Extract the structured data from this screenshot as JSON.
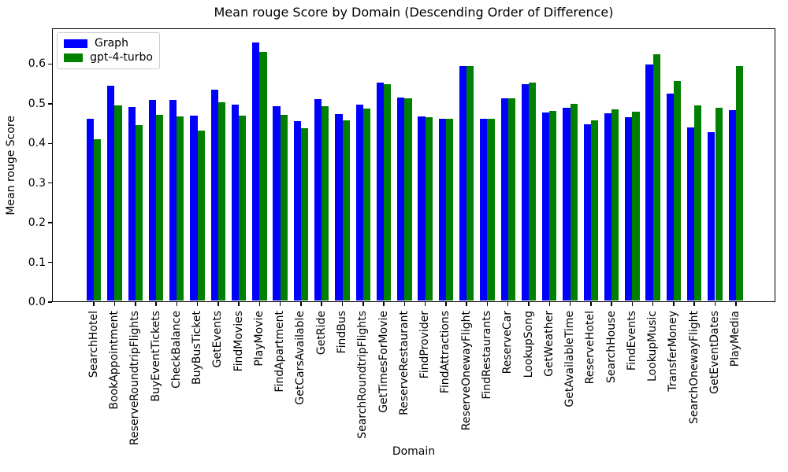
{
  "chart_data": {
    "type": "bar",
    "title": "Mean rouge Score by Domain (Descending Order of Difference)",
    "xlabel": "Domain",
    "ylabel": "Mean rouge Score",
    "ylim": [
      0,
      0.69
    ],
    "yticks": [
      0.0,
      0.1,
      0.2,
      0.3,
      0.4,
      0.5,
      0.6
    ],
    "grid": false,
    "legend_position": "upper-left",
    "categories": [
      "SearchHotel",
      "BookAppointment",
      "ReserveRoundtripFlights",
      "BuyEventTickets",
      "CheckBalance",
      "BuyBusTicket",
      "GetEvents",
      "FindMovies",
      "PlayMovie",
      "FindApartment",
      "GetCarsAvailable",
      "GetRide",
      "FindBus",
      "SearchRoundtripFlights",
      "GetTimesForMovie",
      "ReserveRestaurant",
      "FindProvider",
      "FindAttractions",
      "ReserveOnewayFlight",
      "FindRestaurants",
      "ReserveCar",
      "LookupSong",
      "GetWeather",
      "GetAvailableTime",
      "ReserveHotel",
      "SearchHouse",
      "FindEvents",
      "LookupMusic",
      "TransferMoney",
      "SearchOnewayFlight",
      "GetEventDates",
      "PlayMedia"
    ],
    "series": [
      {
        "name": "Graph",
        "color": "#0000ff",
        "values": [
          0.461,
          0.545,
          0.491,
          0.51,
          0.51,
          0.469,
          0.535,
          0.498,
          0.655,
          0.493,
          0.457,
          0.511,
          0.473,
          0.497,
          0.553,
          0.516,
          0.467,
          0.461,
          0.594,
          0.462,
          0.513,
          0.549,
          0.477,
          0.49,
          0.449,
          0.475,
          0.465,
          0.598,
          0.526,
          0.44,
          0.429,
          0.483
        ]
      },
      {
        "name": "gpt-4-turbo",
        "color": "#008000",
        "values": [
          0.41,
          0.496,
          0.446,
          0.472,
          0.468,
          0.432,
          0.504,
          0.469,
          0.631,
          0.472,
          0.439,
          0.493,
          0.459,
          0.488,
          0.55,
          0.514,
          0.465,
          0.461,
          0.594,
          0.462,
          0.513,
          0.553,
          0.482,
          0.5,
          0.459,
          0.486,
          0.479,
          0.625,
          0.557,
          0.496,
          0.49,
          0.595
        ]
      }
    ]
  }
}
